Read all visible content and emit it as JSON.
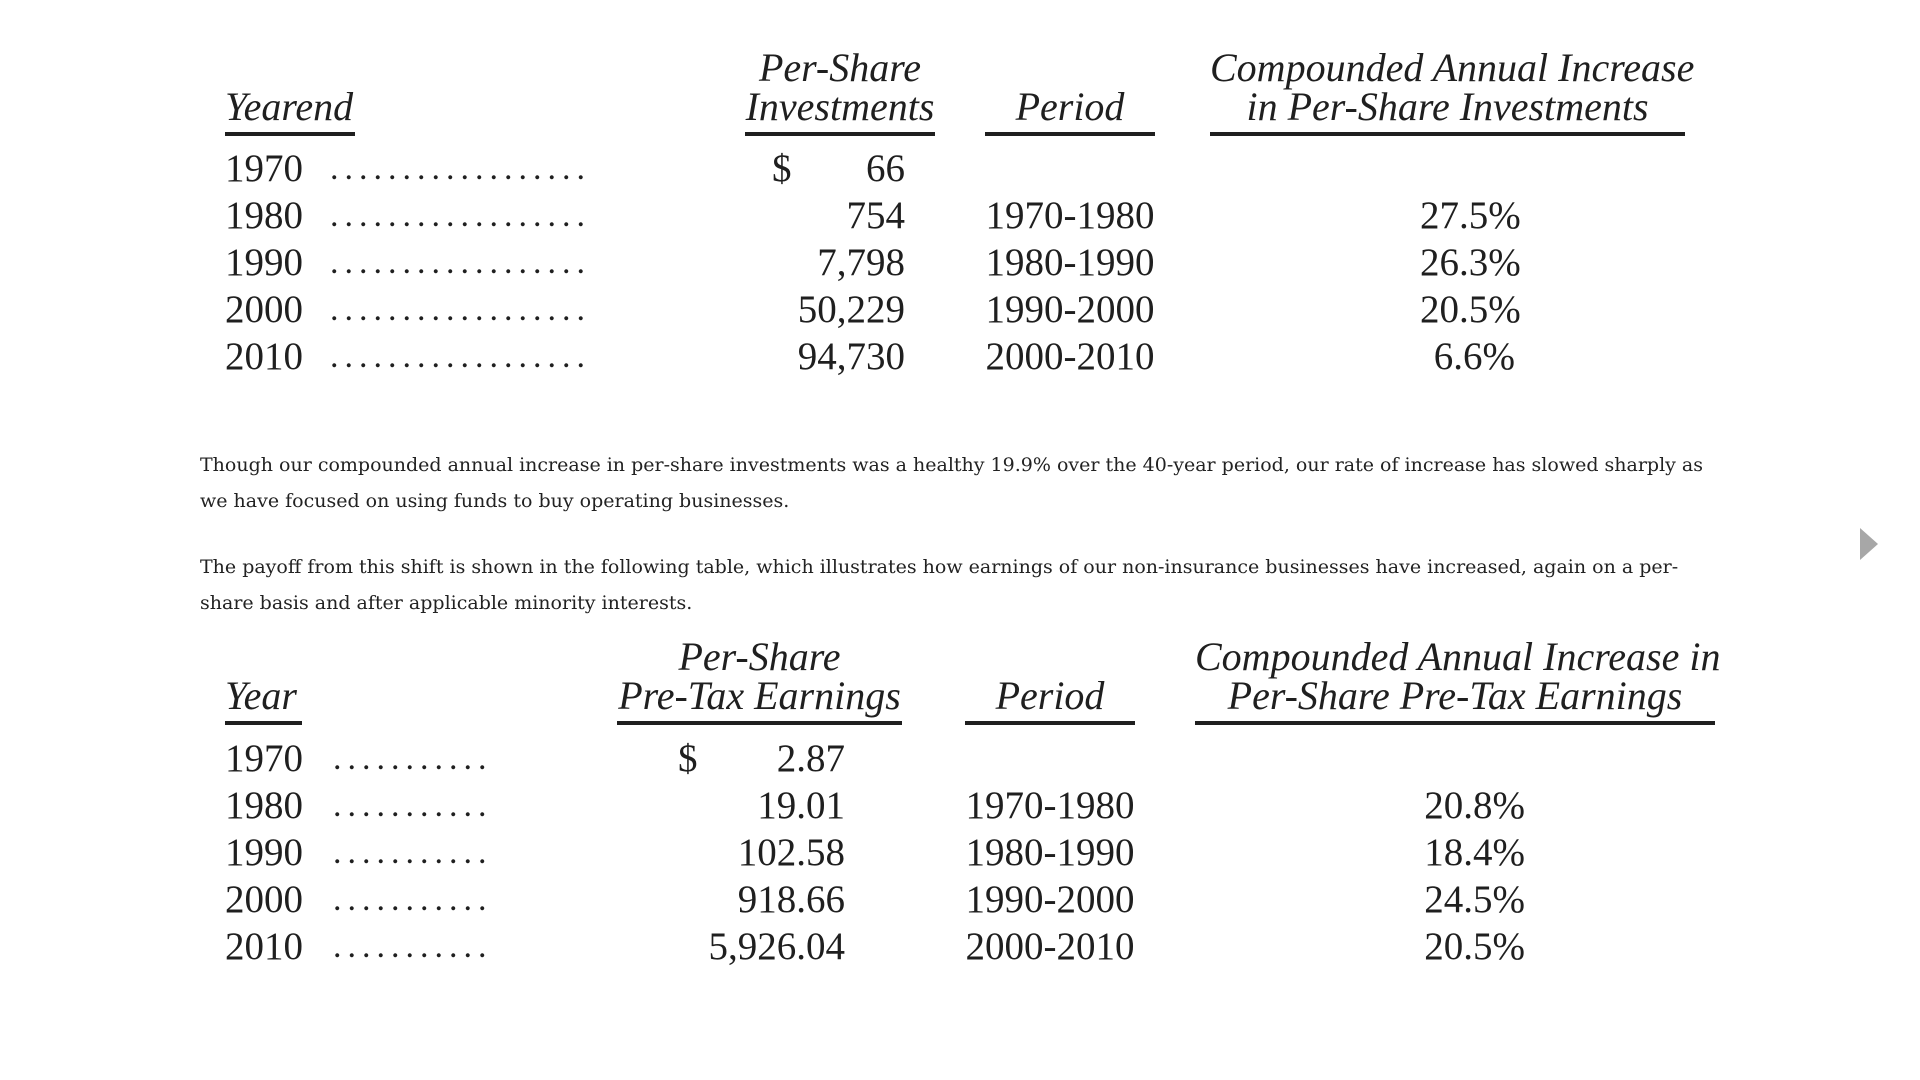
{
  "table1": {
    "headers": {
      "year": "Yearend",
      "value_line1": "Per-Share",
      "value_line2": "Investments",
      "period": "Period",
      "rate_line1": "Compounded Annual Increase",
      "rate_line2": "in Per-Share Investments"
    },
    "currency_symbol": "$",
    "leader_dots": "..................",
    "rows": [
      {
        "year": "1970",
        "value": "66",
        "period": "",
        "rate": ""
      },
      {
        "year": "1980",
        "value": "754",
        "period": "1970-1980",
        "rate": "27.5%"
      },
      {
        "year": "1990",
        "value": "7,798",
        "period": "1980-1990",
        "rate": "26.3%"
      },
      {
        "year": "2000",
        "value": "50,229",
        "period": "1990-2000",
        "rate": "20.5%"
      },
      {
        "year": "2010",
        "value": "94,730",
        "period": "2000-2010",
        "rate": "6.6%"
      }
    ]
  },
  "paragraph1": "Though our compounded annual increase in per-share investments was a healthy 19.9% over the 40-year period, our rate of increase has slowed sharply as we have focused on using funds to buy operating businesses.",
  "paragraph2": "The payoff from this shift is shown in the following table, which illustrates how earnings of our non-insurance businesses have increased, again on a per-share basis and after applicable minority interests.",
  "table2": {
    "headers": {
      "year": "Year",
      "value_line1": "Per-Share",
      "value_line2": "Pre-Tax Earnings",
      "period": "Period",
      "rate_line1": "Compounded Annual Increase in",
      "rate_line2": "Per-Share Pre-Tax Earnings"
    },
    "currency_symbol": "$",
    "leader_dots": "...........",
    "rows": [
      {
        "year": "1970",
        "value": "2.87",
        "period": "",
        "rate": ""
      },
      {
        "year": "1980",
        "value": "19.01",
        "period": "1970-1980",
        "rate": "20.8%"
      },
      {
        "year": "1990",
        "value": "102.58",
        "period": "1980-1990",
        "rate": "18.4%"
      },
      {
        "year": "2000",
        "value": "918.66",
        "period": "1990-2000",
        "rate": "24.5%"
      },
      {
        "year": "2010",
        "value": "5,926.04",
        "period": "2000-2010",
        "rate": "20.5%"
      }
    ]
  },
  "nav": {
    "next_icon": "triangle-right-icon",
    "next_color": "#a7a7a7"
  }
}
